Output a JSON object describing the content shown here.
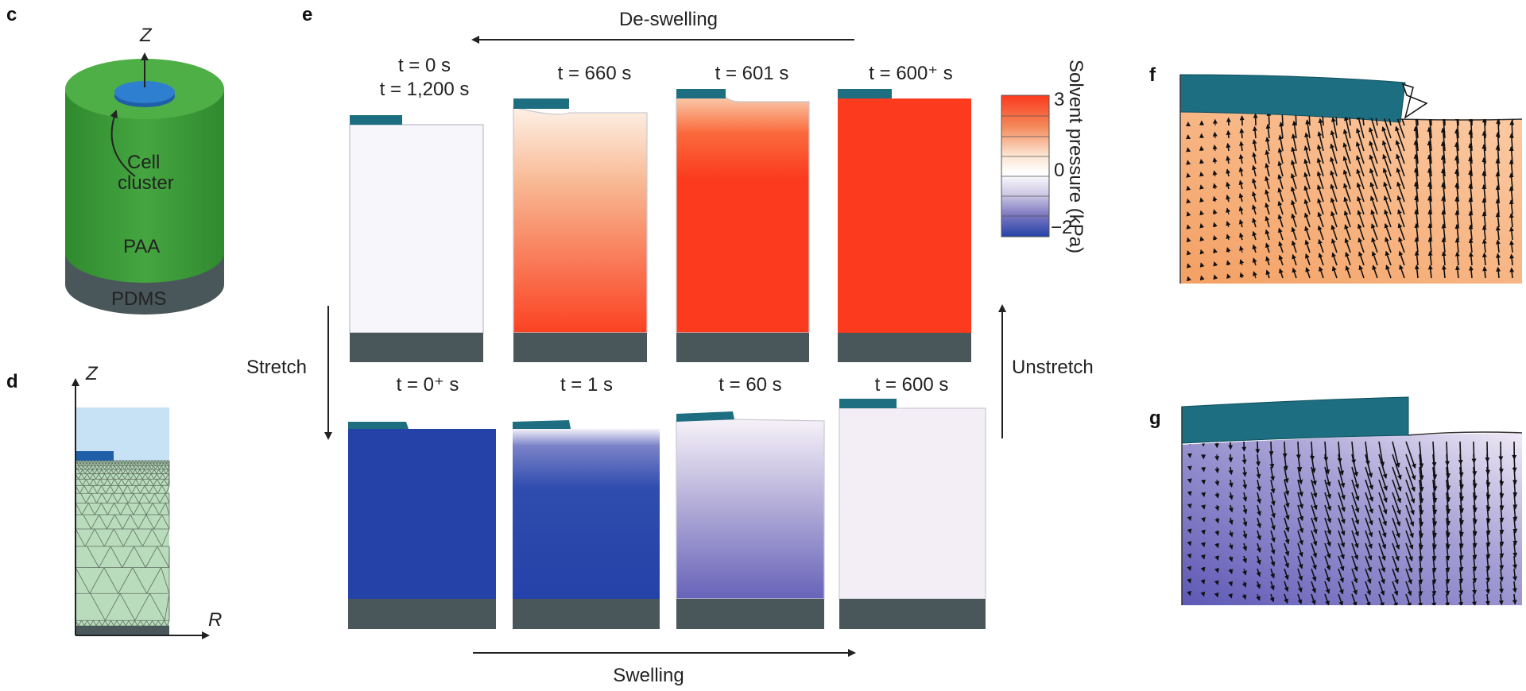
{
  "panels": {
    "c": {
      "letter": "c",
      "axis_label": "Z",
      "cell_label_line1": "Cell",
      "cell_label_line2": "cluster",
      "layer_top": "PAA",
      "layer_bottom": "PDMS"
    },
    "d": {
      "letter": "d",
      "axis_z": "Z",
      "axis_r": "R"
    },
    "e": {
      "letter": "e",
      "top_arrow_label": "De-swelling",
      "bottom_arrow_label": "Swelling",
      "left_arrow_label": "Stretch",
      "right_arrow_label": "Unstretch",
      "top_row": [
        {
          "line1": "t = 0 s",
          "line2": "t = 1,200 s",
          "fill": "#f7f6fb"
        },
        {
          "line1": "t = 660 s",
          "line2": "",
          "fill": "gradient-orange"
        },
        {
          "line1": "t = 601 s",
          "line2": "",
          "fill": "gradient-red"
        },
        {
          "line1": "t = 600⁺ s",
          "line2": "",
          "fill": "#fb3a1e"
        }
      ],
      "bottom_row": [
        {
          "line1": "t = 0⁺ s",
          "fill": "#2442a8"
        },
        {
          "line1": "t = 1 s",
          "fill": "gradient-blue"
        },
        {
          "line1": "t = 60 s",
          "fill": "gradient-lavender"
        },
        {
          "line1": "t = 600 s",
          "fill": "#f3eef6"
        }
      ],
      "colorbar": {
        "title": "Solvent pressure (kPa)",
        "ticks": [
          "3",
          "0",
          "−2"
        ],
        "colors": [
          "#fb3a1e",
          "#f4895a",
          "#fbe3cf",
          "#ffffff",
          "#cfc9e4",
          "#7b77c0",
          "#2442a8"
        ]
      }
    },
    "f": {
      "letter": "f"
    },
    "g": {
      "letter": "g"
    }
  },
  "colors": {
    "gel_green": "#3e9a3a",
    "pdms_gray": "#4a575a",
    "cell_teal": "#1d6e80",
    "cell_blue": "#2e6fc0",
    "mesh_green": "#b9dcbc",
    "sky": "#c7e1f5"
  }
}
